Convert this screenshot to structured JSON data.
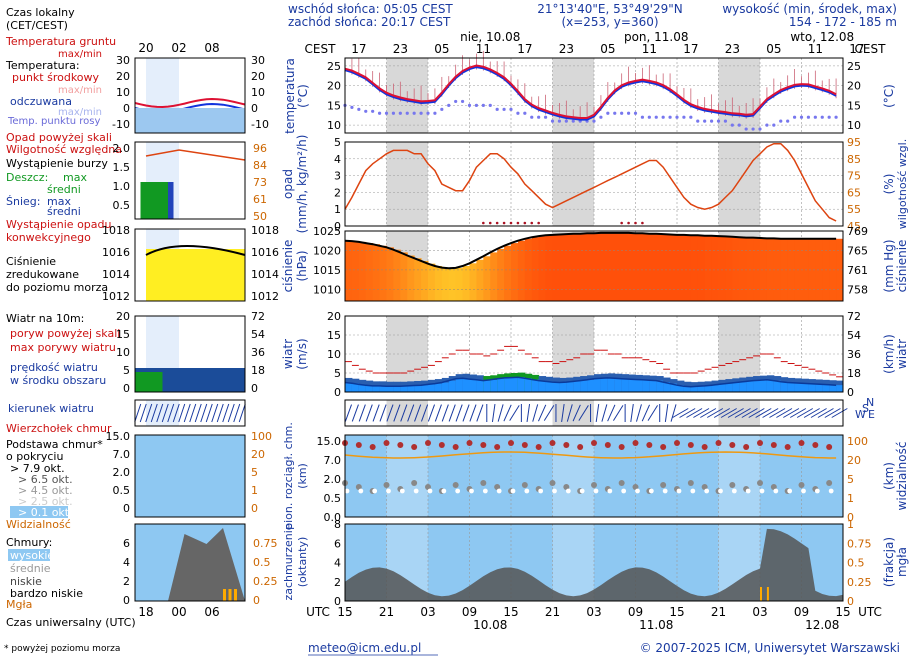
{
  "header": {
    "sunrise": "wschód słońca: 05:05 CEST",
    "sunset": "zachód słońca: 20:17 CEST",
    "coords": "21°13'40\"E, 53°49'29\"N",
    "grid_pos": "(x=253,  y=360)",
    "altitude_label": "wysokość (min, środek, max)",
    "altitude_values": "154 - 172 - 185 m"
  },
  "time": {
    "cest_label": "CEST",
    "utc_label": "UTC",
    "cest_hours": [
      "17",
      "23",
      "05",
      "11",
      "17",
      "23",
      "05",
      "11",
      "17",
      "23",
      "05",
      "11",
      "17"
    ],
    "utc_hours": [
      "15",
      "21",
      "03",
      "09",
      "15",
      "21",
      "03",
      "09",
      "15",
      "21",
      "03",
      "09",
      "15"
    ],
    "days_top": [
      "nie, 10.08",
      "pon, 11.08",
      "wto, 12.08"
    ],
    "days_bottom": [
      "10.08",
      "11.08",
      "12.08"
    ],
    "legend_cest_ticks": [
      "20",
      "02",
      "08"
    ],
    "legend_utc_ticks": [
      "18",
      "00",
      "06"
    ]
  },
  "legend": {
    "local_time": "Czas lokalny",
    "local_time_sub": "(CET/CEST)",
    "utc_time": "Czas uniwersalny (UTC)",
    "footnote": "* powyżej poziomu morza",
    "temp": {
      "soil": "Temperatura gruntu",
      "soil_sub": "max/min",
      "temperature": "Temperatura:",
      "mid": "punkt środkowy",
      "maxmin": "max/min",
      "apparent": "odczuwana",
      "apparent_maxmin": "max/min",
      "dew": "Temp. punktu rosy",
      "ticks": [
        "30",
        "20",
        "10",
        "0",
        "-10"
      ]
    },
    "precip": {
      "above_scale": "Opad powyżej skali",
      "humidity": "Wilgotność względna",
      "storm": "Wystąpienie burzy",
      "rain": "Deszcz:",
      "max": "max",
      "avg": "średni",
      "snow": "Śnieg:",
      "snow_max": "max",
      "snow_avg": "średni",
      "conv1": "Wystąpienie opadu",
      "conv2": "konwekcyjnego",
      "left_ticks": [
        "2.0",
        "1.5",
        "1.0",
        "0.5"
      ],
      "right_ticks": [
        "96",
        "84",
        "73",
        "61",
        "50"
      ]
    },
    "pressure": {
      "l1": "Ciśnienie",
      "l2": "zredukowane",
      "l3": "do poziomu morza",
      "ticks": [
        "1018",
        "1016",
        "1014",
        "1012"
      ]
    },
    "wind": {
      "level": "Wiatr na 10m:",
      "gust_above": "poryw powyżej skali",
      "gust_max": "max porywy wiatru",
      "speed1": "prędkość wiatru",
      "speed2": "w środku obszaru",
      "left_ticks": [
        "20",
        "15",
        "10",
        "5",
        "0"
      ],
      "right_ticks": [
        "72",
        "54",
        "36",
        "18",
        "0"
      ],
      "direction": "kierunek wiatru"
    },
    "clouds": {
      "top": "Wierzchołek chmur",
      "base1": "Podstawa chmur*",
      "base2": "o pokryciu",
      "o79": "> 7.9 okt.",
      "o65": "> 6.5 okt.",
      "o45": "> 4.5 okt.",
      "o25": "> 2.5 okt.",
      "o01": "> 0.1 okt.",
      "visibility": "Widzialność",
      "left_ticks": [
        "15.0",
        "7.0",
        "2.0",
        "0.5",
        "0"
      ],
      "right_ticks": [
        "100",
        "20",
        "5",
        "1",
        "0"
      ],
      "cover_title": "Chmury:",
      "high": "wysokie",
      "mid": "średnie",
      "low": "niskie",
      "vlow": "bardzo niskie",
      "fog": "Mgła",
      "cover_left": [
        "6",
        "4",
        "2",
        "0"
      ],
      "cover_right": [
        "0.75",
        "0.5",
        "0.25",
        "0"
      ]
    }
  },
  "panels": {
    "temp": {
      "label": "temperatura",
      "unit": "(°C)",
      "ticks": [
        "25",
        "20",
        "15",
        "10"
      ]
    },
    "precip": {
      "label1": "opad",
      "label2": "(mm/h, kg/m²/h)",
      "right_label": "wilgotność wzgl.",
      "right_unit": "(%)",
      "left_ticks": [
        "5",
        "4",
        "3",
        "2",
        "1",
        "0"
      ],
      "right_ticks": [
        "95",
        "85",
        "75",
        "65",
        "55",
        "45"
      ]
    },
    "pressure": {
      "label": "ciśnienie",
      "unit": "(hPa)",
      "right_unit": "(mm Hg)",
      "right_label": "ciśnienie",
      "left_ticks": [
        "1025",
        "1020",
        "1015",
        "1010"
      ],
      "right_ticks": [
        "769",
        "765",
        "761",
        "758"
      ]
    },
    "wind": {
      "label": "wiatr",
      "unit": "(m/s)",
      "right_unit": "(km/h)",
      "right_label": "wiatr",
      "left_ticks": [
        "20",
        "15",
        "10",
        "5",
        "0"
      ],
      "right_ticks": [
        "72",
        "54",
        "36",
        "18",
        "0"
      ]
    },
    "clouds": {
      "l1": "pion. rozciągł. chm.",
      "l2": "(km)",
      "right_unit": "(km)",
      "right_label": "widzialność",
      "left_ticks": [
        "15.0",
        "7.0",
        "2.0",
        "0.5",
        "0.0"
      ],
      "right_ticks": [
        "100",
        "20",
        "5",
        "1",
        "0"
      ]
    },
    "cover": {
      "l1": "zachmurzenie",
      "l2": "(oktanty)",
      "right_unit": "(frakcja)",
      "right_label": "mgła",
      "left_ticks": [
        "8",
        "6",
        "4",
        "2",
        "0"
      ],
      "right_ticks": [
        "1",
        "0.75",
        "0.5",
        "0.25",
        "0"
      ]
    }
  },
  "footer": {
    "email": "meteo@icm.edu.pl",
    "copyright": "© 2007-2025 ICM, Uniwersytet Warszawski"
  },
  "colors": {
    "temp": "#dd1133",
    "apparent": "#1133dd",
    "dew": "#7777ee",
    "humidity": "#dd4411",
    "pressure_fill": "#ff7722",
    "pressure_line": "#000000",
    "wind_fill": "#0066dd",
    "wind_green": "#119922",
    "gust": "#cc1111",
    "arrow": "#1a3aa0",
    "cloud_bg": "#8ec8f2",
    "night": "#d8d8d8",
    "visibility": "#ee9911",
    "red_text": "#cc1111",
    "blue_text": "#1a3aa0",
    "orange_text": "#cc6600",
    "link": "#1a3aa0"
  },
  "chart_data": {
    "type": "line",
    "x": "hours from 10.08 15:00 UTC, 72 steps",
    "temperature_c": [
      24.3,
      23.8,
      23.0,
      22.1,
      20.7,
      19.3,
      18.2,
      17.5,
      17.0,
      16.6,
      16.3,
      16.0,
      16.1,
      16.3,
      18.2,
      20.4,
      22.3,
      23.7,
      24.6,
      25.1,
      24.8,
      24.1,
      23.2,
      22.1,
      20.5,
      18.6,
      16.6,
      15.2,
      14.3,
      13.7,
      13.1,
      12.6,
      12.2,
      12.0,
      11.8,
      11.8,
      12.6,
      14.6,
      16.9,
      18.8,
      20.1,
      20.8,
      21.2,
      21.5,
      21.2,
      20.8,
      20.1,
      19.1,
      17.8,
      16.4,
      15.3,
      14.6,
      14.1,
      13.8,
      13.5,
      13.3,
      13.0,
      12.9,
      12.6,
      12.8,
      14.7,
      16.6,
      17.8,
      18.9,
      19.6,
      20.2,
      20.4,
      20.3,
      19.8,
      19.3,
      18.7,
      17.8
    ],
    "dew_point_c": [
      15,
      14.5,
      14,
      13.5,
      13.5,
      13,
      13,
      13,
      13,
      13,
      13,
      13,
      13,
      13,
      14,
      15,
      16,
      16,
      15,
      15,
      15,
      15,
      14,
      14,
      14,
      13,
      13,
      12,
      12,
      12,
      11,
      11,
      11,
      11,
      11,
      11,
      11,
      12,
      13,
      13,
      13,
      13,
      13,
      12,
      12,
      12,
      12,
      12,
      12,
      12,
      12,
      11,
      11,
      11,
      11,
      11,
      10,
      10,
      9,
      9,
      9,
      10,
      10,
      11,
      11,
      12,
      12,
      12,
      12,
      12,
      12,
      12
    ],
    "humidity_pct": [
      55,
      62,
      70,
      78,
      82,
      85,
      88,
      90,
      90,
      90,
      88,
      88,
      82,
      78,
      70,
      68,
      66,
      66,
      72,
      80,
      84,
      88,
      88,
      85,
      80,
      76,
      70,
      66,
      62,
      58,
      56,
      58,
      60,
      62,
      64,
      66,
      68,
      70,
      72,
      74,
      76,
      78,
      80,
      82,
      84,
      84,
      80,
      74,
      68,
      62,
      58,
      56,
      55,
      56,
      58,
      62,
      66,
      72,
      78,
      84,
      88,
      92,
      94,
      94,
      90,
      84,
      76,
      68,
      60,
      55,
      50,
      48
    ],
    "pressure_hpa": [
      1022.5,
      1022.4,
      1022.2,
      1021.9,
      1021.6,
      1021.2,
      1020.8,
      1020.2,
      1019.5,
      1018.7,
      1018.0,
      1017.3,
      1016.6,
      1016.0,
      1015.6,
      1015.4,
      1015.5,
      1016.0,
      1016.7,
      1017.6,
      1018.5,
      1019.5,
      1020.4,
      1021.2,
      1021.9,
      1022.5,
      1023.0,
      1023.4,
      1023.7,
      1023.9,
      1024.0,
      1024.1,
      1024.2,
      1024.3,
      1024.3,
      1024.4,
      1024.4,
      1024.5,
      1024.5,
      1024.5,
      1024.5,
      1024.5,
      1024.4,
      1024.4,
      1024.3,
      1024.3,
      1024.2,
      1024.1,
      1024.0,
      1024.0,
      1023.9,
      1023.9,
      1023.8,
      1023.8,
      1023.7,
      1023.6,
      1023.5,
      1023.4,
      1023.3,
      1023.3,
      1023.2,
      1023.1,
      1023.1,
      1023.0,
      1023.0,
      1023.0,
      1023.0,
      1023.0,
      1023.0,
      1023.0,
      1023.0,
      1023.0
    ],
    "wind_ms": [
      2.5,
      2.3,
      2.0,
      1.8,
      1.6,
      1.6,
      1.5,
      1.5,
      1.5,
      1.6,
      1.7,
      1.8,
      2.0,
      2.2,
      2.5,
      3.0,
      3.5,
      3.6,
      3.4,
      3.2,
      3.0,
      3.2,
      3.5,
      3.7,
      3.8,
      3.9,
      3.6,
      3.3,
      3.0,
      2.8,
      2.6,
      2.5,
      2.6,
      2.8,
      3.0,
      3.2,
      3.5,
      3.6,
      3.7,
      3.6,
      3.5,
      3.4,
      3.3,
      3.2,
      3.1,
      3.0,
      2.6,
      2.2,
      1.8,
      1.5,
      1.4,
      1.5,
      1.6,
      1.8,
      2.0,
      2.2,
      2.4,
      2.6,
      2.8,
      3.0,
      3.1,
      3.2,
      3.0,
      2.7,
      2.5,
      2.4,
      2.3,
      2.2,
      2.1,
      2.0,
      1.9,
      1.8
    ],
    "gust_ms": [
      8,
      7,
      6,
      5.5,
      5,
      5,
      5,
      5,
      5,
      5.5,
      6,
      6.5,
      7,
      8,
      9,
      10,
      11,
      11,
      10,
      10,
      9.5,
      10,
      11,
      12,
      12,
      11,
      10,
      9,
      8,
      8,
      7.5,
      8,
      8.5,
      9,
      10,
      10,
      11,
      11,
      10,
      10,
      9,
      9,
      9,
      8.5,
      8,
      7.5,
      6,
      5,
      5,
      5,
      5,
      5.5,
      6,
      6.5,
      7,
      7.5,
      8,
      8.5,
      9,
      9.5,
      10,
      10,
      9,
      8,
      7.5,
      7,
      6.5,
      6,
      5.5,
      5,
      4.5,
      4
    ],
    "fog_fraction": [
      0,
      0,
      0,
      0,
      0,
      0,
      0,
      0,
      0,
      0,
      0,
      0,
      0,
      0,
      0,
      0,
      0,
      0,
      0,
      0,
      0,
      0,
      0,
      0,
      0,
      0,
      0,
      0,
      0,
      0,
      0,
      0,
      0,
      0,
      0,
      0,
      0,
      0,
      0,
      0,
      0,
      0,
      0,
      0,
      0,
      0,
      0,
      0,
      0,
      0,
      0,
      0,
      0,
      0,
      0,
      0,
      0,
      0,
      0,
      0,
      0.2,
      0.2,
      0,
      0,
      0,
      0,
      0,
      0,
      0,
      0,
      0,
      0
    ]
  }
}
